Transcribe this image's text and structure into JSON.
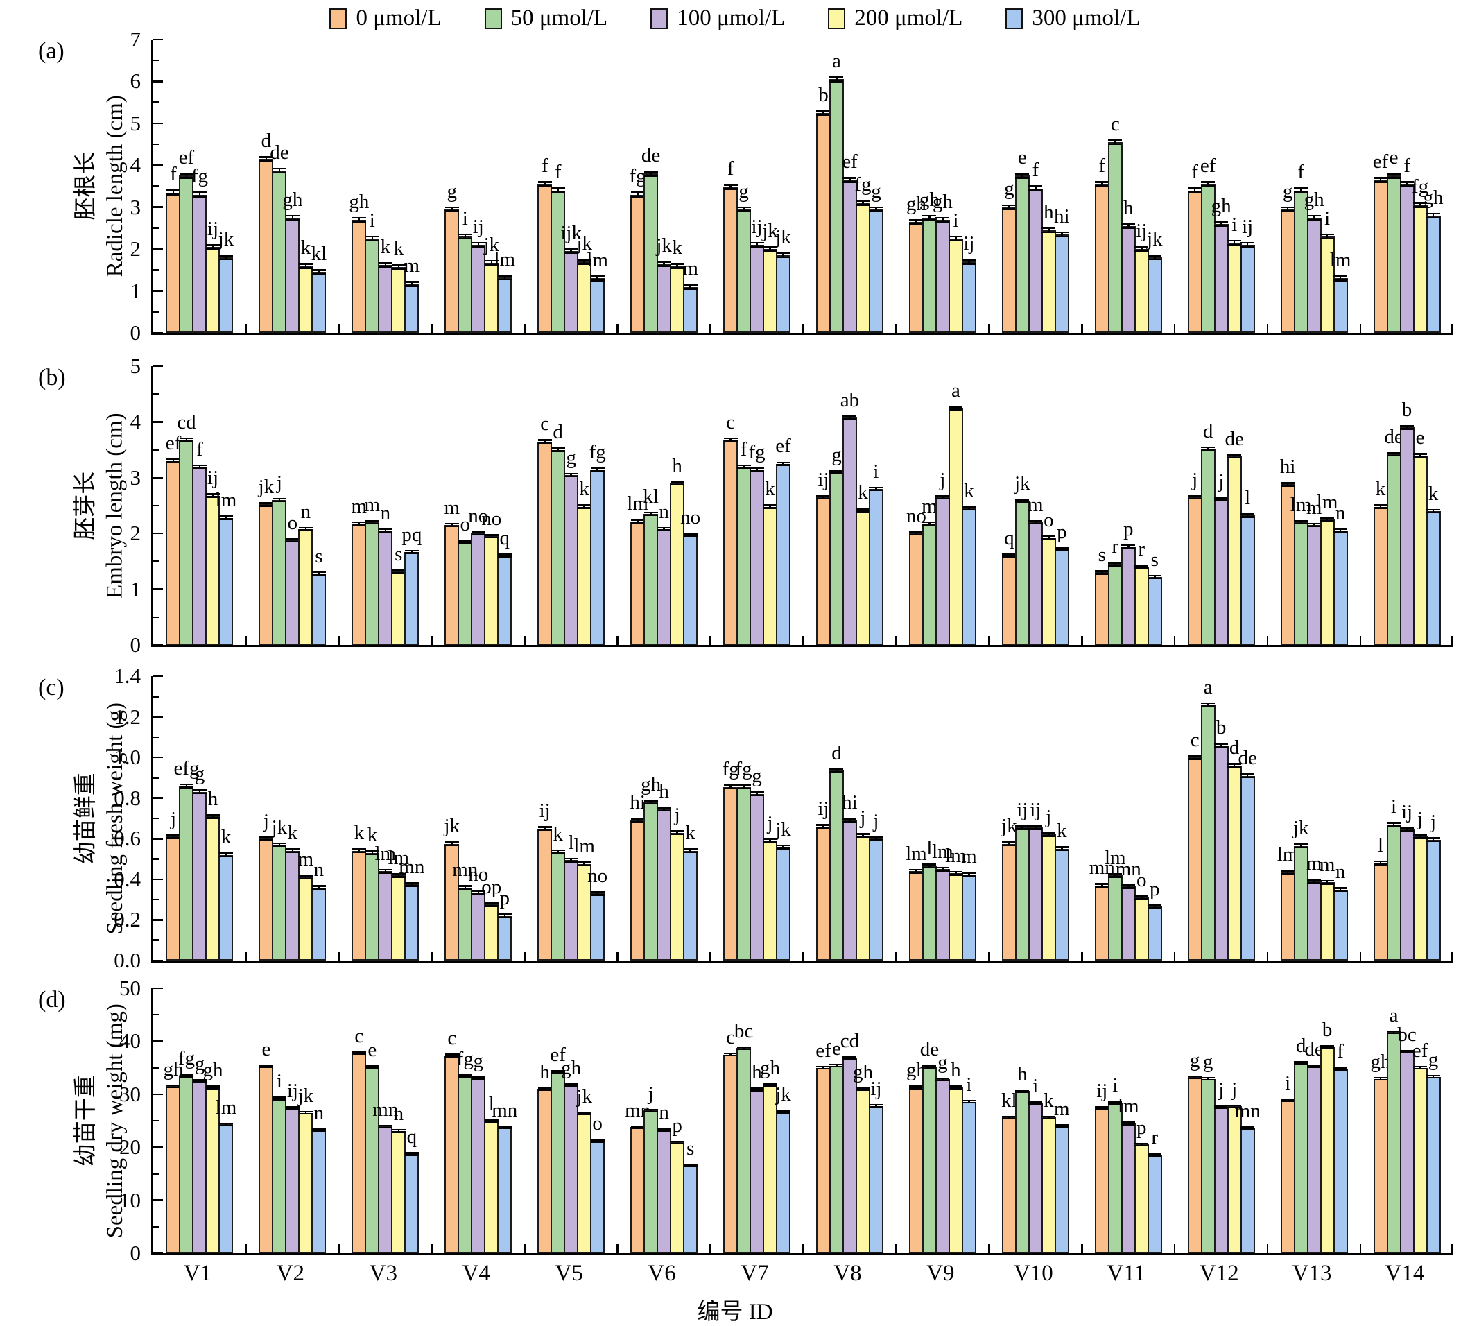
{
  "legend": [
    "0 μmol/L",
    "50 μmol/L",
    "100 μmol/L",
    "200 μmol/L",
    "300 μmol/L"
  ],
  "colors": [
    "#F9C08C",
    "#A8D5A0",
    "#C2B2DA",
    "#FDF7A4",
    "#A6C7F0"
  ],
  "xlabel": "编号 ID",
  "categories": [
    "V1",
    "V2",
    "V3",
    "V4",
    "V5",
    "V6",
    "V7",
    "V8",
    "V9",
    "V10",
    "V11",
    "V12",
    "V13",
    "V14"
  ],
  "chart_data": [
    {
      "type": "bar",
      "panel_label": "(a)",
      "ylabel_zh": "胚根长",
      "ylabel_en": "Radicle length (cm)",
      "ylim": [
        0,
        7
      ],
      "ytick_step": 1,
      "tick_decimals": 0,
      "approx_err": 0.07,
      "legend_position": "top",
      "grid": false,
      "series": [
        {
          "name": "0 μmol/L",
          "values": [
            3.35,
            4.15,
            2.7,
            2.95,
            3.55,
            3.3,
            3.48,
            5.25,
            2.65,
            3.0,
            3.55,
            3.4,
            2.95,
            3.65
          ],
          "letters": [
            "f",
            "d",
            "gh",
            "g",
            "f",
            "fg",
            "f",
            "b",
            "gh",
            "g",
            "f",
            "f",
            "g",
            "ef"
          ]
        },
        {
          "name": "50 μmol/L",
          "values": [
            3.75,
            3.87,
            2.25,
            2.3,
            3.4,
            3.8,
            2.95,
            6.05,
            2.75,
            3.75,
            4.55,
            3.55,
            3.4,
            3.75
          ],
          "letters": [
            "ef",
            "de",
            "i",
            "i",
            "f",
            "de",
            "g",
            "a",
            "gh",
            "e",
            "c",
            "ef",
            "f",
            "e"
          ]
        },
        {
          "name": "100 μmol/L",
          "values": [
            3.3,
            2.75,
            1.62,
            2.1,
            1.95,
            1.65,
            2.1,
            3.65,
            2.7,
            3.45,
            2.55,
            2.6,
            2.75,
            3.55
          ],
          "letters": [
            "fg",
            "gh",
            "k",
            "ij",
            "ijk",
            "jk",
            "ij",
            "ef",
            "gh",
            "f",
            "h",
            "gh",
            "gh",
            "f"
          ]
        },
        {
          "name": "200 μmol/L",
          "values": [
            2.05,
            1.6,
            1.58,
            1.67,
            1.7,
            1.6,
            2.0,
            3.1,
            2.25,
            2.45,
            2.0,
            2.15,
            2.3,
            3.05
          ],
          "letters": [
            "ij",
            "k",
            "k",
            "jk",
            "jk",
            "k",
            "jk",
            "fg",
            "i",
            "h",
            "ij",
            "i",
            "i",
            "fg"
          ]
        },
        {
          "name": "300 μmol/L",
          "values": [
            1.8,
            1.45,
            1.17,
            1.32,
            1.3,
            1.1,
            1.85,
            2.95,
            1.7,
            2.35,
            1.8,
            2.1,
            1.3,
            2.8
          ],
          "letters": [
            "jk",
            "kl",
            "m",
            "lm",
            "lm",
            "m",
            "jk",
            "g",
            "ij",
            "hi",
            "jk",
            "ij",
            "lm",
            "gh"
          ]
        }
      ]
    },
    {
      "type": "bar",
      "panel_label": "(b)",
      "ylabel_zh": "胚芽长",
      "ylabel_en": "Embryo length (cm)",
      "ylim": [
        0,
        5
      ],
      "ytick_step": 1,
      "tick_decimals": 0,
      "approx_err": 0.04,
      "grid": false,
      "series": [
        {
          "name": "0 μmol/L",
          "values": [
            3.3,
            2.52,
            2.18,
            2.15,
            3.65,
            2.22,
            3.68,
            2.65,
            2.0,
            1.6,
            1.3,
            2.65,
            2.88,
            2.48
          ],
          "letters": [
            "ef",
            "jk",
            "m",
            "m",
            "c",
            "lm",
            "c",
            "ij",
            "no",
            "q",
            "s",
            "j",
            "hi",
            "k"
          ]
        },
        {
          "name": "50 μmol/L",
          "values": [
            3.68,
            2.6,
            2.2,
            1.85,
            3.5,
            2.35,
            3.2,
            3.1,
            2.18,
            2.58,
            1.45,
            3.52,
            2.2,
            3.42
          ],
          "letters": [
            "cd",
            "j",
            "m",
            "o",
            "d",
            "kl",
            "f",
            "g",
            "m",
            "jk",
            "r",
            "d",
            "lm",
            "de"
          ]
        },
        {
          "name": "100 μmol/L",
          "values": [
            3.2,
            1.88,
            2.05,
            2.0,
            3.05,
            2.08,
            3.15,
            4.08,
            2.65,
            2.2,
            1.76,
            2.62,
            2.15,
            3.9
          ],
          "letters": [
            "f",
            "o",
            "n",
            "no",
            "g",
            "n",
            "fg",
            "ab",
            "j",
            "m",
            "p",
            "j",
            "m",
            "b"
          ]
        },
        {
          "name": "200 μmol/L",
          "values": [
            2.68,
            2.08,
            1.32,
            1.95,
            2.48,
            2.9,
            2.48,
            2.42,
            4.25,
            1.92,
            1.4,
            3.38,
            2.25,
            3.4
          ],
          "letters": [
            "ij",
            "n",
            "s",
            "no",
            "k",
            "h",
            "k",
            "k",
            "a",
            "o",
            "r",
            "de",
            "lm",
            "e"
          ]
        },
        {
          "name": "300 μmol/L",
          "values": [
            2.28,
            1.28,
            1.67,
            1.6,
            3.15,
            1.97,
            3.25,
            2.8,
            2.45,
            1.72,
            1.22,
            2.32,
            2.05,
            2.4
          ],
          "letters": [
            "lm",
            "s",
            "pq",
            "q",
            "fg",
            "no",
            "ef",
            "i",
            "k",
            "p",
            "s",
            "l",
            "n",
            "k"
          ]
        }
      ]
    },
    {
      "type": "bar",
      "panel_label": "(c)",
      "ylabel_zh": "幼苗鲜重",
      "ylabel_en": "Seedling fresh weight (g)",
      "ylim": [
        0,
        1.4
      ],
      "ytick_step": 0.2,
      "tick_decimals": 1,
      "approx_err": 0.012,
      "grid": false,
      "series": [
        {
          "name": "0 μmol/L",
          "values": [
            0.61,
            0.6,
            0.54,
            0.575,
            0.65,
            0.69,
            0.855,
            0.66,
            0.44,
            0.575,
            0.37,
            1.0,
            0.435,
            0.48
          ],
          "letters": [
            "j",
            "j",
            "k",
            "jk",
            "ij",
            "hi",
            "fg",
            "ij",
            "lm",
            "jk",
            "mn",
            "c",
            "lm",
            "l"
          ]
        },
        {
          "name": "50 μmol/L",
          "values": [
            0.86,
            0.57,
            0.53,
            0.36,
            0.535,
            0.78,
            0.855,
            0.935,
            0.465,
            0.655,
            0.42,
            1.26,
            0.565,
            0.67
          ],
          "letters": [
            "efg",
            "jk",
            "k",
            "mn",
            "k",
            "gh",
            "fg",
            "d",
            "l",
            "ij",
            "lm",
            "a",
            "jk",
            "i"
          ]
        },
        {
          "name": "100 μmol/L",
          "values": [
            0.83,
            0.54,
            0.44,
            0.335,
            0.495,
            0.745,
            0.82,
            0.69,
            0.45,
            0.655,
            0.365,
            1.06,
            0.39,
            0.645
          ],
          "letters": [
            "g",
            "k",
            "lm",
            "no",
            "l",
            "h",
            "g",
            "hi",
            "lm",
            "ij",
            "mn",
            "b",
            "m",
            "ij"
          ]
        },
        {
          "name": "200 μmol/L",
          "values": [
            0.71,
            0.41,
            0.42,
            0.275,
            0.475,
            0.63,
            0.59,
            0.615,
            0.43,
            0.62,
            0.31,
            0.96,
            0.385,
            0.61
          ],
          "letters": [
            "h",
            "m",
            "lm",
            "op",
            "lm",
            "j",
            "j",
            "j",
            "lm",
            "j",
            "o",
            "d",
            "m",
            "j"
          ]
        },
        {
          "name": "300 μmol/L",
          "values": [
            0.52,
            0.36,
            0.375,
            0.22,
            0.33,
            0.54,
            0.56,
            0.6,
            0.425,
            0.55,
            0.265,
            0.91,
            0.35,
            0.595
          ],
          "letters": [
            "k",
            "n",
            "mn",
            "p",
            "no",
            "k",
            "jk",
            "j",
            "m",
            "k",
            "p",
            "de",
            "n",
            "j"
          ]
        }
      ]
    },
    {
      "type": "bar",
      "panel_label": "(d)",
      "ylabel_zh": "幼苗干重",
      "ylabel_en": "Seedling dry weight (mg)",
      "ylim": [
        0,
        50
      ],
      "ytick_step": 10,
      "tick_decimals": 0,
      "approx_err": 0.35,
      "grid": false,
      "series": [
        {
          "name": "0 μmol/L",
          "values": [
            31.5,
            35.3,
            37.8,
            37.3,
            31.0,
            23.8,
            37.5,
            35.0,
            31.3,
            25.6,
            27.4,
            33.2,
            28.9,
            32.9
          ],
          "letters": [
            "gh",
            "e",
            "c",
            "c",
            "h",
            "mn",
            "c",
            "ef",
            "gh",
            "kl",
            "ij",
            "g",
            "i",
            "gh"
          ]
        },
        {
          "name": "50 μmol/L",
          "values": [
            33.5,
            29.2,
            35.1,
            33.4,
            34.2,
            26.9,
            38.7,
            35.4,
            35.2,
            30.6,
            28.4,
            32.9,
            35.9,
            41.7
          ],
          "letters": [
            "fg",
            "i",
            "e",
            "fg",
            "ef",
            "j",
            "bc",
            "e",
            "de",
            "h",
            "i",
            "g",
            "d",
            "a"
          ]
        },
        {
          "name": "100 μmol/L",
          "values": [
            32.5,
            27.4,
            23.9,
            33.0,
            31.7,
            23.3,
            30.9,
            36.8,
            32.8,
            28.3,
            24.5,
            27.6,
            35.3,
            38.0
          ],
          "letters": [
            "g",
            "ij",
            "mn",
            "g",
            "gh",
            "n",
            "h",
            "cd",
            "g",
            "i",
            "lm",
            "j",
            "de",
            "bc"
          ]
        },
        {
          "name": "200 μmol/L",
          "values": [
            31.3,
            26.5,
            23.1,
            24.9,
            26.4,
            20.9,
            31.7,
            31.0,
            31.3,
            25.6,
            20.5,
            27.7,
            38.9,
            35.0
          ],
          "letters": [
            "gh",
            "jk",
            "n",
            "l",
            "jk",
            "p",
            "gh",
            "gh",
            "h",
            "k",
            "p",
            "j",
            "b",
            "ef"
          ]
        },
        {
          "name": "300 μmol/L",
          "values": [
            24.3,
            23.2,
            18.7,
            23.8,
            21.2,
            16.6,
            26.7,
            27.8,
            28.6,
            24.0,
            18.6,
            23.6,
            34.8,
            33.3
          ],
          "letters": [
            "lm",
            "n",
            "q",
            "mn",
            "o",
            "s",
            "jk",
            "ij",
            "i",
            "m",
            "r",
            "mn",
            "f",
            "g"
          ]
        }
      ]
    }
  ]
}
